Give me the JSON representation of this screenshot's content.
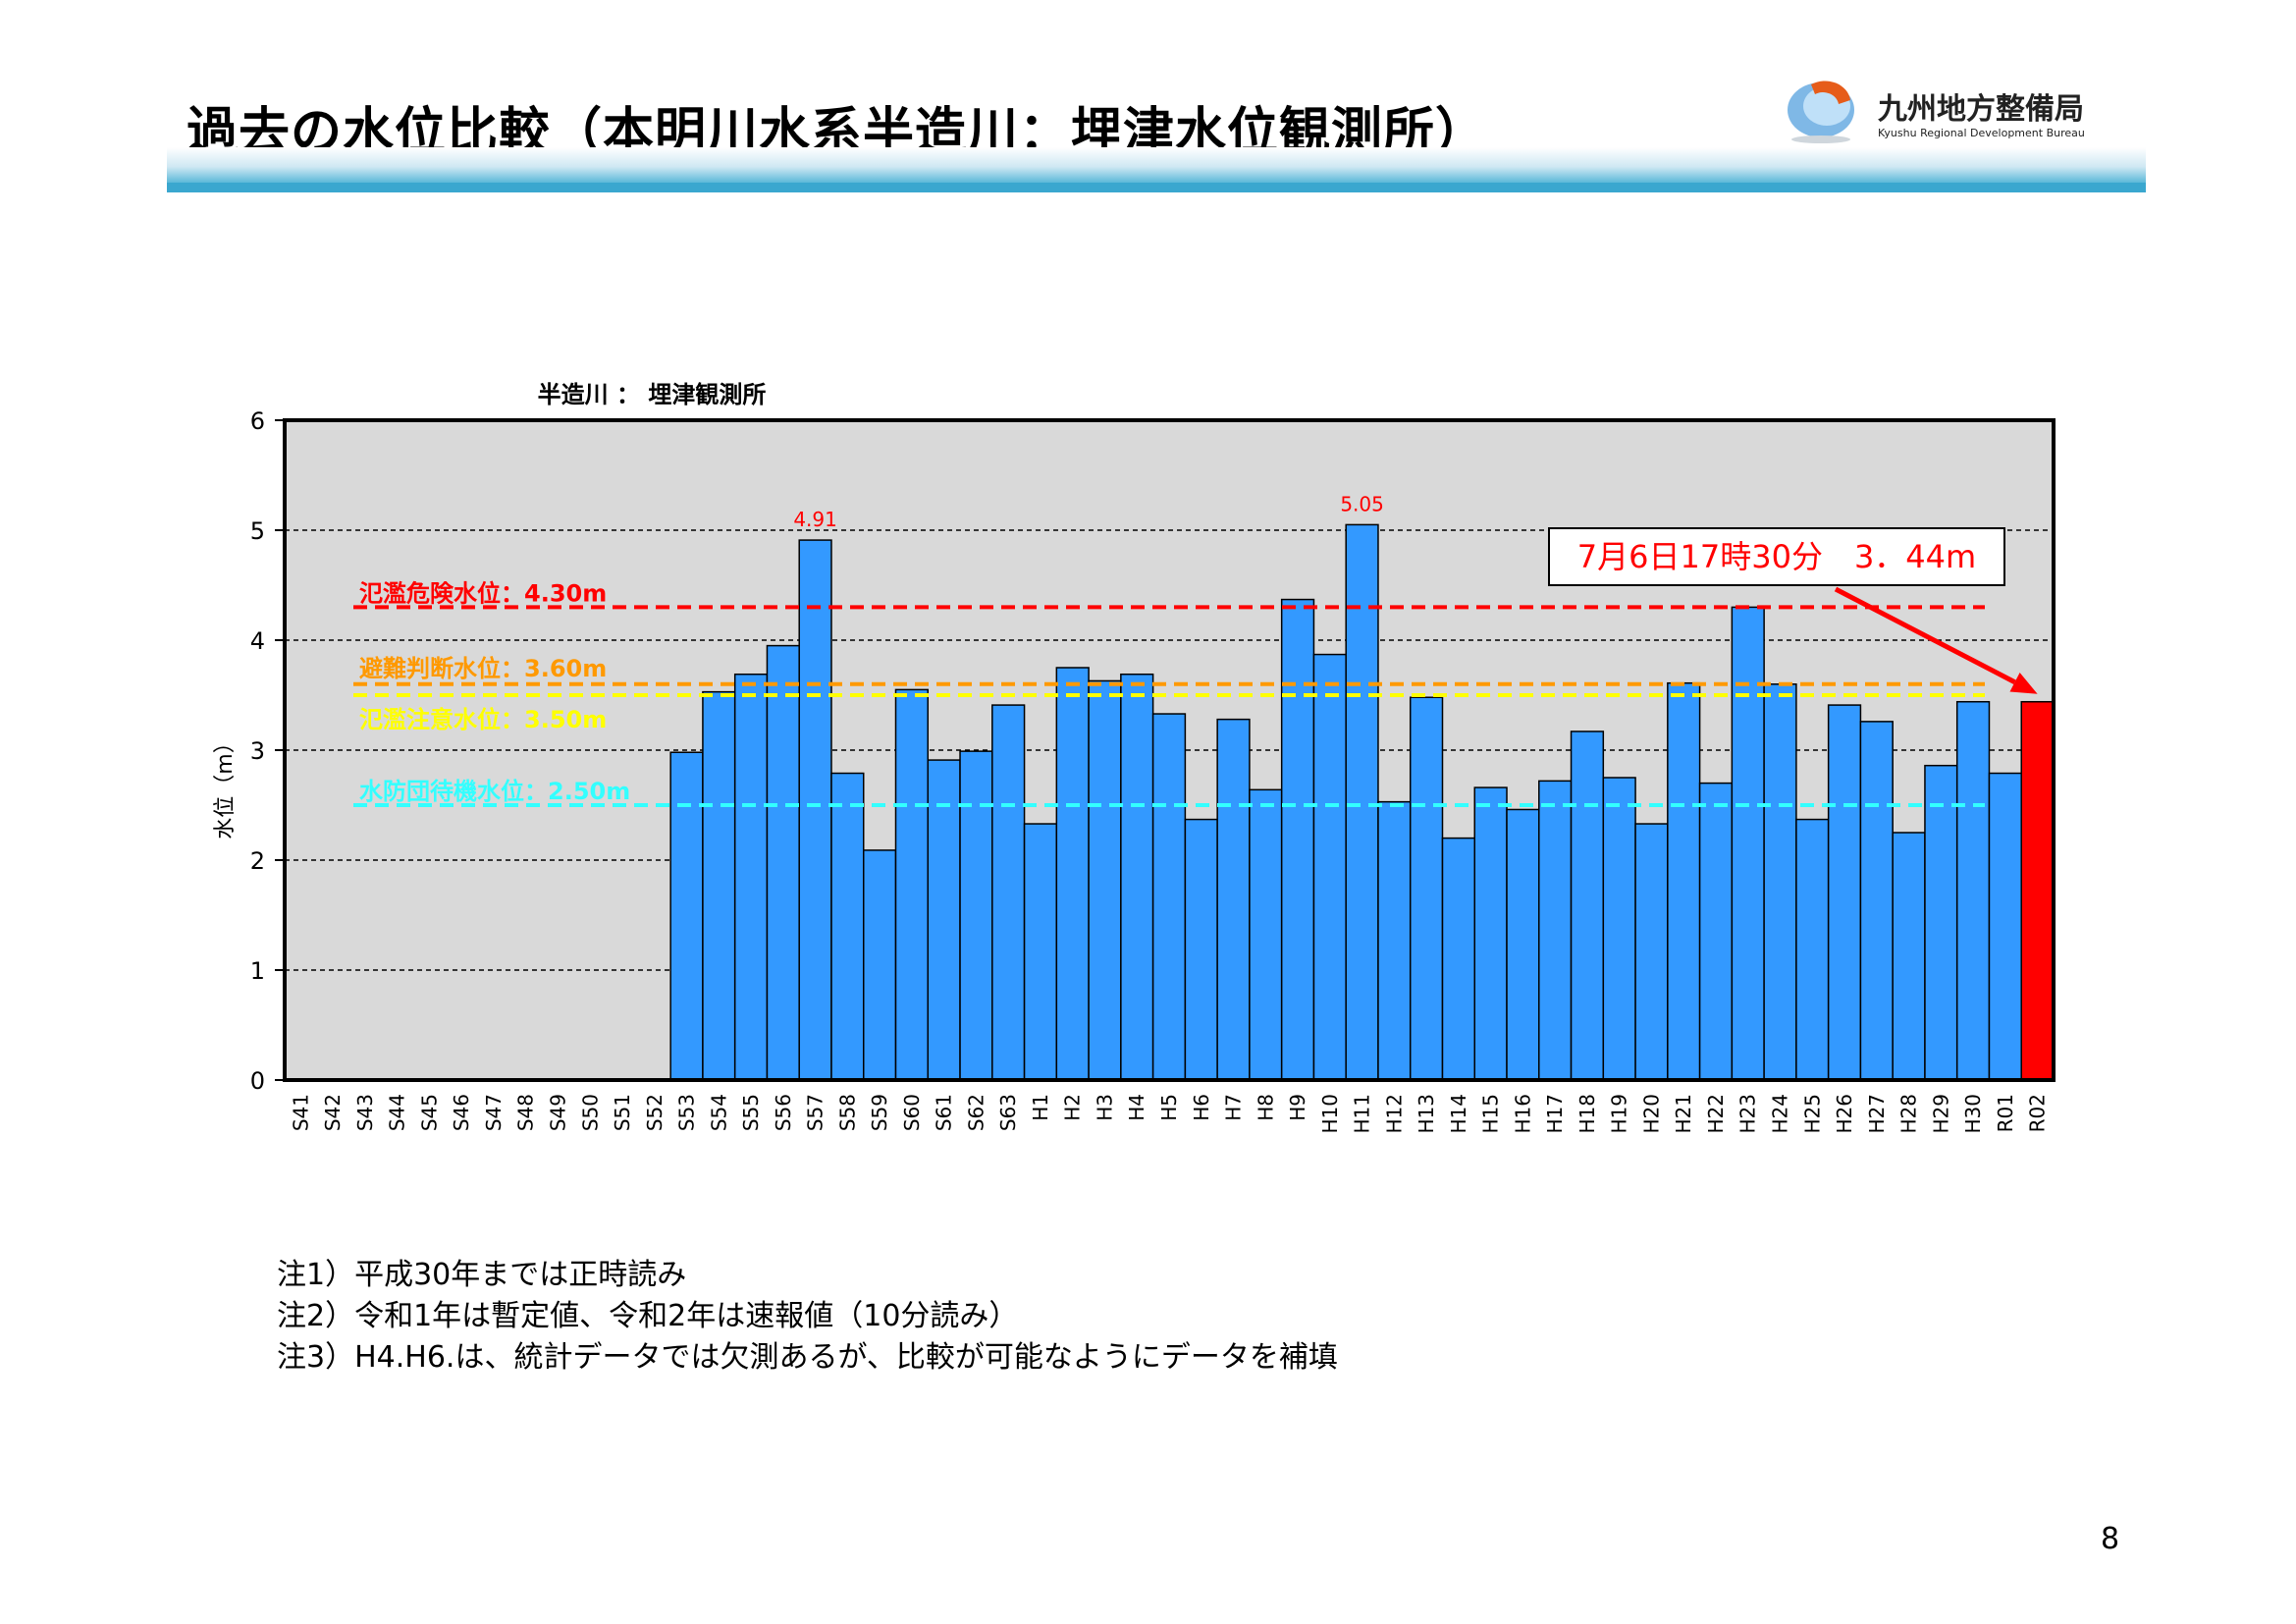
{
  "header": {
    "title": "過去の水位比較（本明川水系半造川：埋津水位観測所）",
    "logo_name": "九州地方整備局",
    "logo_sub": "Kyushu Regional Development Bureau"
  },
  "chart_data": {
    "type": "bar",
    "title": "半造川 ： 埋津観測所",
    "xlabel": "",
    "ylabel": "水位（m）",
    "ylim": [
      0,
      6
    ],
    "yticks": [
      "0",
      "1",
      "2",
      "3",
      "4",
      "5",
      "6"
    ],
    "grid": "horizontal dashed",
    "categories": [
      "S41",
      "S42",
      "S43",
      "S44",
      "S45",
      "S46",
      "S47",
      "S48",
      "S49",
      "S50",
      "S51",
      "S52",
      "S53",
      "S54",
      "S55",
      "S56",
      "S57",
      "S58",
      "S59",
      "S60",
      "S61",
      "S62",
      "S63",
      "H1",
      "H2",
      "H3",
      "H4",
      "H5",
      "H6",
      "H7",
      "H8",
      "H9",
      "H10",
      "H11",
      "H12",
      "H13",
      "H14",
      "H15",
      "H16",
      "H17",
      "H18",
      "H19",
      "H20",
      "H21",
      "H22",
      "H23",
      "H24",
      "H25",
      "H26",
      "H27",
      "H28",
      "H29",
      "H30",
      "R01",
      "R02"
    ],
    "values": [
      null,
      null,
      null,
      null,
      null,
      null,
      null,
      null,
      null,
      null,
      null,
      null,
      2.98,
      3.53,
      3.69,
      3.95,
      4.91,
      2.79,
      2.09,
      3.55,
      2.91,
      2.99,
      3.41,
      2.33,
      3.75,
      3.63,
      3.69,
      3.33,
      2.37,
      3.28,
      2.64,
      4.37,
      3.87,
      5.05,
      2.53,
      3.48,
      2.2,
      2.66,
      2.46,
      2.72,
      3.17,
      2.75,
      2.33,
      3.61,
      2.7,
      4.3,
      3.6,
      2.37,
      3.41,
      3.26,
      2.25,
      2.86,
      3.44,
      2.79,
      3.44
    ],
    "bar_color": "#3399ff",
    "highlight_index": 54,
    "highlight_color": "#ff0000",
    "data_labels": [
      {
        "index": 16,
        "text": "4.91"
      },
      {
        "index": 33,
        "text": "5.05"
      }
    ],
    "reference_lines": [
      {
        "label": "氾濫危険水位：4.30m",
        "value": 4.3,
        "color": "#ff0000"
      },
      {
        "label": "避難判断水位：3.60m",
        "value": 3.6,
        "color": "#ff9900"
      },
      {
        "label": "氾濫注意水位：3.50m",
        "value": 3.5,
        "color": "#ffff00"
      },
      {
        "label": "水防団待機水位：2.50m",
        "value": 2.5,
        "color": "#33ffff"
      }
    ],
    "callout": {
      "text": "7月6日17時30分　3．44m",
      "target_index": 54
    }
  },
  "notes": [
    "注1）平成30年までは正時読み",
    "注2）令和1年は暫定値、令和2年は速報値（10分読み）",
    "注3）H4.H6.は、統計データでは欠測あるが、比較が可能なようにデータを補填"
  ],
  "page_number": "8"
}
